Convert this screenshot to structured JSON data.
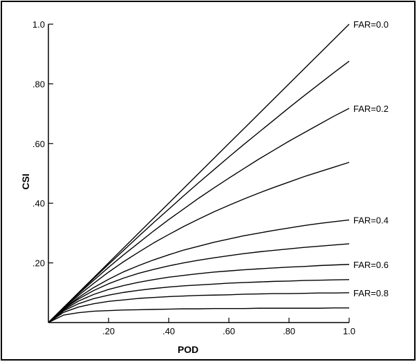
{
  "chart_data": {
    "type": "line",
    "title": "",
    "xlabel": "POD",
    "ylabel": "CSI",
    "xlim": [
      0,
      1.0
    ],
    "ylim": [
      0,
      1.0
    ],
    "x_ticks": [
      0.2,
      0.4,
      0.6,
      0.8,
      1.0
    ],
    "x_tick_labels": [
      ".20",
      ".40",
      ".60",
      ".80",
      "1.0"
    ],
    "y_ticks": [
      0.2,
      0.4,
      0.6,
      0.8,
      1.0
    ],
    "y_tick_labels": [
      ".20",
      ".40",
      ".60",
      ".80",
      "1.0"
    ],
    "grid": false,
    "x": [
      0.0,
      0.05,
      0.1,
      0.15,
      0.2,
      0.25,
      0.3,
      0.35,
      0.4,
      0.45,
      0.5,
      0.55,
      0.6,
      0.65,
      0.7,
      0.75,
      0.8,
      0.85,
      0.9,
      0.95,
      1.0
    ],
    "series": [
      {
        "far": 0.0,
        "label": "FAR=0.0",
        "values": [
          0.0,
          0.05,
          0.1,
          0.15,
          0.2,
          0.25,
          0.3,
          0.35,
          0.4,
          0.45,
          0.5,
          0.55,
          0.6,
          0.65,
          0.7,
          0.75,
          0.8,
          0.85,
          0.9,
          0.95,
          1.0
        ]
      },
      {
        "far": 0.1,
        "label": "",
        "values": [
          0.0,
          0.05,
          0.099,
          0.147,
          0.195,
          0.242,
          0.289,
          0.335,
          0.38,
          0.425,
          0.469,
          0.512,
          0.555,
          0.597,
          0.638,
          0.679,
          0.72,
          0.76,
          0.799,
          0.838,
          0.876
        ]
      },
      {
        "far": 0.2,
        "label": "FAR=0.2",
        "values": [
          0.0,
          0.049,
          0.096,
          0.141,
          0.185,
          0.227,
          0.267,
          0.307,
          0.345,
          0.381,
          0.417,
          0.451,
          0.484,
          0.516,
          0.548,
          0.578,
          0.608,
          0.636,
          0.664,
          0.692,
          0.718
        ]
      },
      {
        "far": 0.3,
        "label": "",
        "values": [
          0.0,
          0.048,
          0.091,
          0.131,
          0.169,
          0.204,
          0.236,
          0.267,
          0.295,
          0.322,
          0.347,
          0.371,
          0.393,
          0.414,
          0.434,
          0.453,
          0.471,
          0.489,
          0.505,
          0.521,
          0.537
        ]
      },
      {
        "far": 0.4,
        "label": "FAR=0.4",
        "values": [
          0.0,
          0.046,
          0.084,
          0.117,
          0.145,
          0.17,
          0.191,
          0.21,
          0.227,
          0.243,
          0.256,
          0.269,
          0.28,
          0.291,
          0.3,
          0.309,
          0.317,
          0.325,
          0.332,
          0.338,
          0.344
        ]
      },
      {
        "far": 0.5,
        "label": "",
        "values": [
          0.0,
          0.045,
          0.079,
          0.107,
          0.13,
          0.149,
          0.165,
          0.178,
          0.19,
          0.2,
          0.209,
          0.217,
          0.224,
          0.231,
          0.237,
          0.242,
          0.247,
          0.252,
          0.256,
          0.26,
          0.264
        ]
      },
      {
        "far": 0.6,
        "label": "FAR=0.6",
        "values": [
          0.0,
          0.042,
          0.072,
          0.094,
          0.111,
          0.124,
          0.135,
          0.144,
          0.152,
          0.158,
          0.164,
          0.169,
          0.173,
          0.177,
          0.18,
          0.183,
          0.186,
          0.188,
          0.191,
          0.193,
          0.195
        ]
      },
      {
        "far": 0.7,
        "label": "",
        "values": [
          0.0,
          0.039,
          0.063,
          0.08,
          0.092,
          0.101,
          0.108,
          0.114,
          0.119,
          0.123,
          0.126,
          0.129,
          0.132,
          0.134,
          0.136,
          0.138,
          0.139,
          0.141,
          0.142,
          0.143,
          0.144
        ]
      },
      {
        "far": 0.8,
        "label": "FAR=0.8",
        "values": [
          0.0,
          0.034,
          0.052,
          0.063,
          0.071,
          0.076,
          0.081,
          0.084,
          0.087,
          0.089,
          0.091,
          0.092,
          0.093,
          0.095,
          0.096,
          0.097,
          0.097,
          0.098,
          0.099,
          0.099,
          0.1
        ]
      },
      {
        "far": 0.9,
        "label": "",
        "values": [
          0.0,
          0.025,
          0.033,
          0.038,
          0.04,
          0.042,
          0.043,
          0.044,
          0.045,
          0.046,
          0.046,
          0.047,
          0.047,
          0.047,
          0.048,
          0.048,
          0.048,
          0.048,
          0.048,
          0.049,
          0.049
        ]
      }
    ]
  }
}
